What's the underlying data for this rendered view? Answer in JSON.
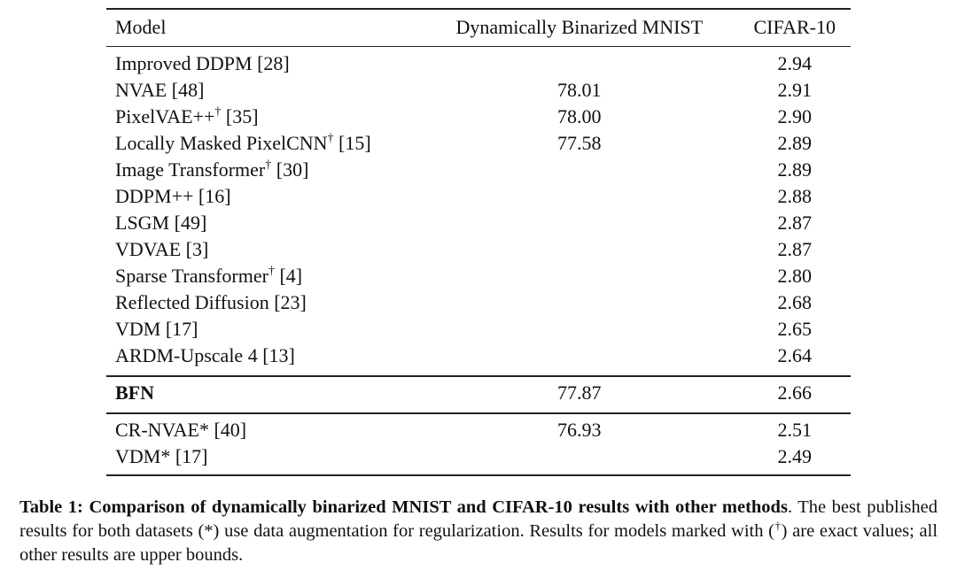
{
  "table": {
    "header": [
      "Model",
      "Dynamically Binarized MNIST",
      "CIFAR-10"
    ],
    "groups": [
      [
        {
          "model": "Improved DDPM",
          "ref": "[28]",
          "cifar": "2.94"
        },
        {
          "model": "NVAE",
          "ref": "[48]",
          "mnist": "78.01",
          "cifar": "2.91"
        },
        {
          "model": "PixelVAE++",
          "sup": "†",
          "ref": "[35]",
          "mnist": "78.00",
          "cifar": "2.90"
        },
        {
          "model": "Locally Masked PixelCNN",
          "sup": "†",
          "ref": "[15]",
          "mnist": "77.58",
          "cifar": "2.89"
        },
        {
          "model": "Image Transformer",
          "sup": "†",
          "ref": "[30]",
          "cifar": "2.89"
        },
        {
          "model": "DDPM++",
          "ref": "[16]",
          "cifar": "2.88"
        },
        {
          "model": "LSGM",
          "ref": "[49]",
          "cifar": "2.87"
        },
        {
          "model": "VDVAE",
          "ref": "[3]",
          "cifar": "2.87"
        },
        {
          "model": "Sparse Transformer",
          "sup": "†",
          "ref": "[4]",
          "cifar": "2.80"
        },
        {
          "model": "Reflected Diffusion",
          "ref": "[23]",
          "cifar": "2.68"
        },
        {
          "model": "VDM",
          "ref": "[17]",
          "cifar": "2.65"
        },
        {
          "model": "ARDM-Upscale 4",
          "ref": "[13]",
          "cifar": "2.64"
        }
      ],
      [
        {
          "model": "BFN",
          "bold": true,
          "mnist": "77.87",
          "cifar": "2.66"
        }
      ],
      [
        {
          "model": "CR-NVAE*",
          "ref": "[40]",
          "mnist": "76.93",
          "cifar": "2.51"
        },
        {
          "model": "VDM*",
          "ref": "[17]",
          "cifar": "2.49"
        }
      ]
    ]
  },
  "caption": {
    "label": "Table 1:",
    "title": "Comparison of dynamically binarized MNIST and CIFAR-10 results with other methods",
    "text_before": ". The best published results for both datasets (*) use data augmentation for regularization. Results for models marked with (",
    "dagger": "†",
    "text_after": ") are exact values; all other results are upper bounds."
  }
}
